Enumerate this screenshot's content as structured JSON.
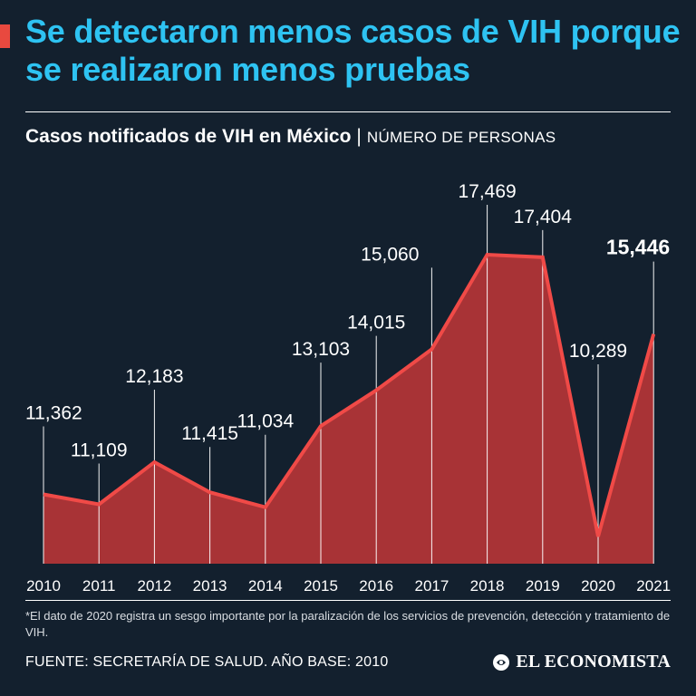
{
  "headline": "Se detectaron menos casos de VIH porque se realizaron menos pruebas",
  "subtitle": {
    "main": "Casos notificados de VIH en México",
    "separator": "|",
    "unit": "NÚMERO DE PERSONAS"
  },
  "chart_data": {
    "type": "area",
    "title": "Casos notificados de VIH en México",
    "ylabel": "NÚMERO DE PERSONAS",
    "xlabel": "",
    "ylim": [
      0,
      18000
    ],
    "categories": [
      "2010",
      "2011",
      "2012",
      "2013",
      "2014",
      "2015",
      "2016",
      "2017",
      "2018",
      "2019",
      "2020",
      "2021"
    ],
    "series": [
      {
        "name": "Casos notificados de VIH",
        "values": [
          11362,
          11109,
          12183,
          11415,
          11034,
          13103,
          14015,
          15060,
          17469,
          17404,
          10289,
          15446
        ]
      }
    ],
    "data_labels": [
      "11,362",
      "11,109",
      "12,183",
      "11,415",
      "11,034",
      "13,103",
      "14,015",
      "15,060",
      "17,469",
      "17,404",
      "10,289",
      "15,446"
    ],
    "highlight_index": 11,
    "grid": false
  },
  "footnote": "*El dato de 2020 registra un sesgo importante por la paralización de los servicios de prevención, detección y tratamiento de VIH.",
  "source": "FUENTE: SECRETARÍA DE SALUD. AÑO BASE: 2010",
  "brand": {
    "name": "EL ECONOMISTA",
    "icon": "el-economista-logo-icon"
  },
  "colors": {
    "background": "#13202e",
    "headline": "#2ec3f2",
    "accent": "#e8493f",
    "area_fill": "#a83336",
    "line": "#f04a47"
  }
}
